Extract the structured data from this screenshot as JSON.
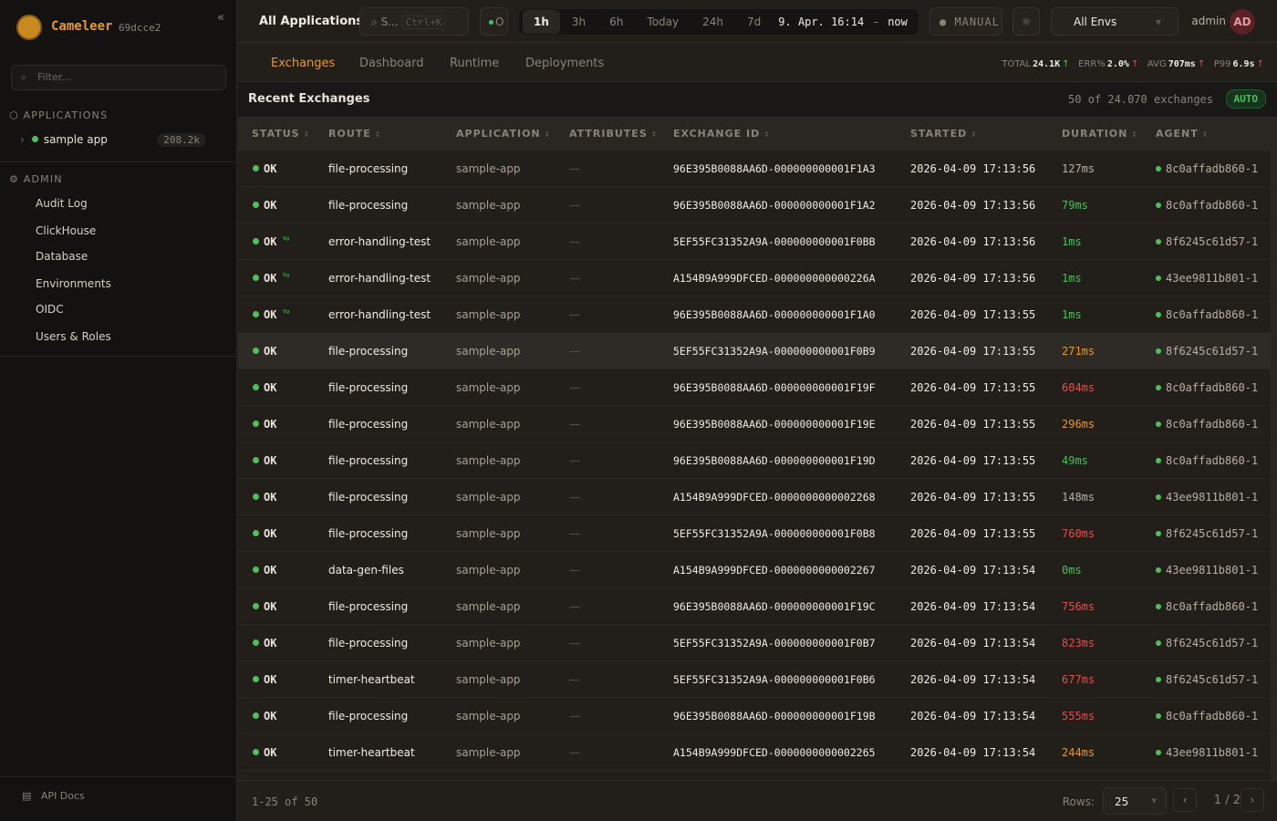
{
  "sidebar": {
    "brand": "Cameleer",
    "version": "69dcce2",
    "filter_placeholder": "Filter...",
    "applications_label": "APPLICATIONS",
    "apps": [
      {
        "name": "sample app",
        "count": "208.2k"
      }
    ],
    "admin_label": "ADMIN",
    "admin_items": [
      "Audit Log",
      "ClickHouse",
      "Database",
      "Environments",
      "OIDC",
      "Users & Roles"
    ],
    "api_docs": "API Docs"
  },
  "topbar": {
    "title": "All Applications",
    "search": "S...",
    "shortcut": "Ctrl+K",
    "status": "O",
    "ranges": [
      "1h",
      "3h",
      "6h",
      "Today",
      "24h",
      "7d"
    ],
    "active_range": "1h",
    "range_from": "9. Apr. 16:14",
    "range_sep": "–",
    "range_to": "now",
    "manual": "MANUAL",
    "env": "All Envs",
    "user": "admin",
    "avatar": "AD"
  },
  "tabs": [
    "Exchanges",
    "Dashboard",
    "Runtime",
    "Deployments"
  ],
  "kpis": {
    "total_label": "TOTAL",
    "total": "24.1K",
    "err_label": "ERR%",
    "err": "2.0%",
    "avg_label": "AVG",
    "avg": "707ms",
    "p99_label": "P99",
    "p99": "6.9s"
  },
  "recent": {
    "title": "Recent Exchanges",
    "count": "50 of 24.070 exchanges",
    "auto": "AUTO"
  },
  "columns": [
    "STATUS",
    "ROUTE",
    "APPLICATION",
    "ATTRIBUTES",
    "EXCHANGE ID",
    "STARTED",
    "DURATION",
    "AGENT"
  ],
  "colors": {
    "ok": "#4fbf5e",
    "fast": "#4fbf5e",
    "normal": "#b8b0a4",
    "slow": "#e39a2a",
    "very_slow": "#e05050",
    "accent": "#e39a2a"
  },
  "rows": [
    {
      "status": "OK",
      "trace": false,
      "route": "file-processing",
      "app": "sample-app",
      "attr": "—",
      "id": "96E395B0088AA6D-000000000001F1A3",
      "started": "2026-04-09 17:13:56",
      "duration": "127ms",
      "agent": "8c0affadb860-1"
    },
    {
      "status": "OK",
      "trace": false,
      "route": "file-processing",
      "app": "sample-app",
      "attr": "—",
      "id": "96E395B0088AA6D-000000000001F1A2",
      "started": "2026-04-09 17:13:56",
      "duration": "79ms",
      "agent": "8c0affadb860-1"
    },
    {
      "status": "OK",
      "trace": true,
      "route": "error-handling-test",
      "app": "sample-app",
      "attr": "—",
      "id": "5EF55FC31352A9A-000000000001F0BB",
      "started": "2026-04-09 17:13:56",
      "duration": "1ms",
      "agent": "8f6245c61d57-1"
    },
    {
      "status": "OK",
      "trace": true,
      "route": "error-handling-test",
      "app": "sample-app",
      "attr": "—",
      "id": "A154B9A999DFCED-000000000000226A",
      "started": "2026-04-09 17:13:56",
      "duration": "1ms",
      "agent": "43ee9811b801-1"
    },
    {
      "status": "OK",
      "trace": true,
      "route": "error-handling-test",
      "app": "sample-app",
      "attr": "—",
      "id": "96E395B0088AA6D-000000000001F1A0",
      "started": "2026-04-09 17:13:55",
      "duration": "1ms",
      "agent": "8c0affadb860-1"
    },
    {
      "status": "OK",
      "trace": false,
      "route": "file-processing",
      "app": "sample-app",
      "attr": "—",
      "id": "5EF55FC31352A9A-000000000001F0B9",
      "started": "2026-04-09 17:13:55",
      "duration": "271ms",
      "agent": "8f6245c61d57-1"
    },
    {
      "status": "OK",
      "trace": false,
      "route": "file-processing",
      "app": "sample-app",
      "attr": "—",
      "id": "96E395B0088AA6D-000000000001F19F",
      "started": "2026-04-09 17:13:55",
      "duration": "604ms",
      "agent": "8c0affadb860-1"
    },
    {
      "status": "OK",
      "trace": false,
      "route": "file-processing",
      "app": "sample-app",
      "attr": "—",
      "id": "96E395B0088AA6D-000000000001F19E",
      "started": "2026-04-09 17:13:55",
      "duration": "296ms",
      "agent": "8c0affadb860-1"
    },
    {
      "status": "OK",
      "trace": false,
      "route": "file-processing",
      "app": "sample-app",
      "attr": "—",
      "id": "96E395B0088AA6D-000000000001F19D",
      "started": "2026-04-09 17:13:55",
      "duration": "49ms",
      "agent": "8c0affadb860-1"
    },
    {
      "status": "OK",
      "trace": false,
      "route": "file-processing",
      "app": "sample-app",
      "attr": "—",
      "id": "A154B9A999DFCED-0000000000002268",
      "started": "2026-04-09 17:13:55",
      "duration": "148ms",
      "agent": "43ee9811b801-1"
    },
    {
      "status": "OK",
      "trace": false,
      "route": "file-processing",
      "app": "sample-app",
      "attr": "—",
      "id": "5EF55FC31352A9A-000000000001F0B8",
      "started": "2026-04-09 17:13:55",
      "duration": "760ms",
      "agent": "8f6245c61d57-1"
    },
    {
      "status": "OK",
      "trace": false,
      "route": "data-gen-files",
      "app": "sample-app",
      "attr": "—",
      "id": "A154B9A999DFCED-0000000000002267",
      "started": "2026-04-09 17:13:54",
      "duration": "0ms",
      "agent": "43ee9811b801-1"
    },
    {
      "status": "OK",
      "trace": false,
      "route": "file-processing",
      "app": "sample-app",
      "attr": "—",
      "id": "96E395B0088AA6D-000000000001F19C",
      "started": "2026-04-09 17:13:54",
      "duration": "756ms",
      "agent": "8c0affadb860-1"
    },
    {
      "status": "OK",
      "trace": false,
      "route": "file-processing",
      "app": "sample-app",
      "attr": "—",
      "id": "5EF55FC31352A9A-000000000001F0B7",
      "started": "2026-04-09 17:13:54",
      "duration": "823ms",
      "agent": "8f6245c61d57-1"
    },
    {
      "status": "OK",
      "trace": false,
      "route": "timer-heartbeat",
      "app": "sample-app",
      "attr": "—",
      "id": "5EF55FC31352A9A-000000000001F0B6",
      "started": "2026-04-09 17:13:54",
      "duration": "677ms",
      "agent": "8f6245c61d57-1"
    },
    {
      "status": "OK",
      "trace": false,
      "route": "file-processing",
      "app": "sample-app",
      "attr": "—",
      "id": "96E395B0088AA6D-000000000001F19B",
      "started": "2026-04-09 17:13:54",
      "duration": "555ms",
      "agent": "8c0affadb860-1"
    },
    {
      "status": "OK",
      "trace": false,
      "route": "timer-heartbeat",
      "app": "sample-app",
      "attr": "—",
      "id": "A154B9A999DFCED-0000000000002265",
      "started": "2026-04-09 17:13:54",
      "duration": "244ms",
      "agent": "43ee9811b801-1"
    }
  ],
  "footer": {
    "range": "1-25 of 50",
    "rows_label": "Rows:",
    "rows_value": "25",
    "page": "1",
    "page_sep": "/",
    "pages": "2"
  }
}
